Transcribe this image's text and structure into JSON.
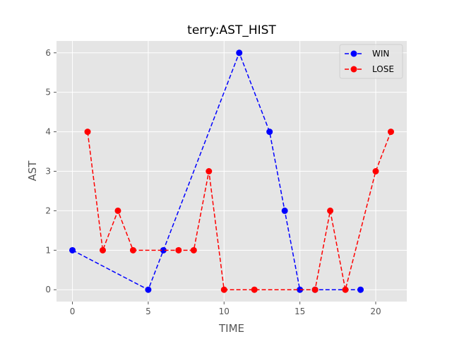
{
  "chart_data": {
    "type": "line",
    "title": "terry:AST_HIST",
    "xlabel": "TIME",
    "ylabel": "AST",
    "xlim": [
      -1.05,
      22.05
    ],
    "ylim": [
      -0.3,
      6.3
    ],
    "xticks": [
      0,
      5,
      10,
      15,
      20
    ],
    "yticks": [
      0,
      1,
      2,
      3,
      4,
      5,
      6
    ],
    "grid": true,
    "legend_position": "top-right",
    "series": [
      {
        "name": "WIN",
        "color": "#0000ff",
        "x": [
          0,
          5,
          6,
          11,
          13,
          14,
          15,
          16,
          19
        ],
        "y": [
          1,
          0,
          1,
          6,
          4,
          2,
          0,
          0,
          0
        ]
      },
      {
        "name": "LOSE",
        "color": "#ff0000",
        "x": [
          1,
          2,
          3,
          4,
          7,
          8,
          9,
          10,
          12,
          16,
          17,
          18,
          20,
          21
        ],
        "y": [
          4,
          1,
          2,
          1,
          1,
          1,
          3,
          0,
          0,
          0,
          2,
          0,
          3,
          4
        ]
      }
    ]
  }
}
